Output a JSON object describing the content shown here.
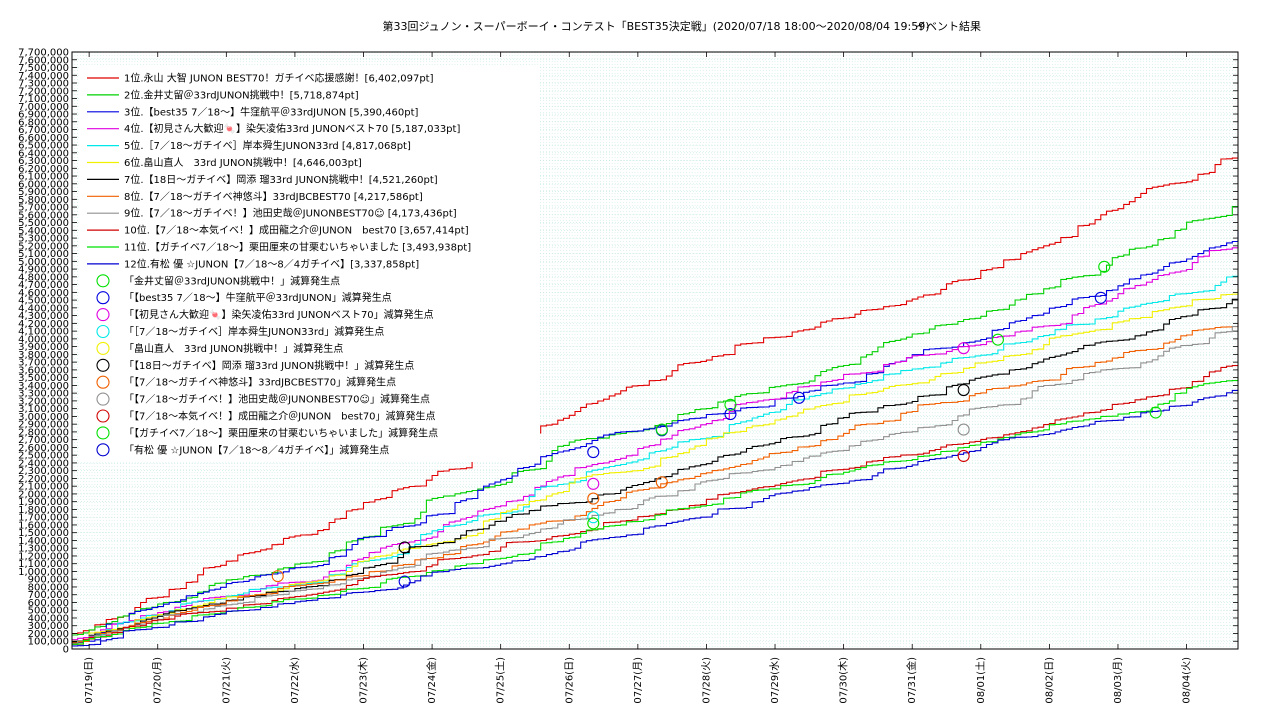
{
  "chart_data": {
    "type": "line",
    "title": "第33回ジュノン・スーパーボーイ・コンテスト「BEST35決定戦」(2020/07/18 18:00〜2020/08/04 19:59)",
    "subtitle": "イベント結果",
    "xlabel": "",
    "ylabel": "",
    "ylim": [
      0,
      7700000
    ],
    "xlim": [
      0,
      17
    ],
    "y_ticks": [
      "0",
      "100,000",
      "200,000",
      "300,000",
      "400,000",
      "500,000",
      "600,000",
      "700,000",
      "800,000",
      "900,000",
      "1,000,000",
      "1,100,000",
      "1,200,000",
      "1,300,000",
      "1,400,000",
      "1,500,000",
      "1,600,000",
      "1,700,000",
      "1,800,000",
      "1,900,000",
      "2,000,000",
      "2,100,000",
      "2,200,000",
      "2,300,000",
      "2,400,000",
      "2,500,000",
      "2,600,000",
      "2,700,000",
      "2,800,000",
      "2,900,000",
      "3,000,000",
      "3,100,000",
      "3,200,000",
      "3,300,000",
      "3,400,000",
      "3,500,000",
      "3,600,000",
      "3,700,000",
      "3,800,000",
      "3,900,000",
      "4,000,000",
      "4,100,000",
      "4,200,000",
      "4,300,000",
      "4,400,000",
      "4,500,000",
      "4,600,000",
      "4,700,000",
      "4,800,000",
      "4,900,000",
      "5,000,000",
      "5,100,000",
      "5,200,000",
      "5,300,000",
      "5,400,000",
      "5,500,000",
      "5,600,000",
      "5,700,000",
      "5,800,000",
      "5,900,000",
      "6,000,000",
      "6,100,000",
      "6,200,000",
      "6,300,000",
      "6,400,000",
      "6,500,000",
      "6,600,000",
      "6,700,000",
      "6,800,000",
      "6,900,000",
      "7,000,000",
      "7,100,000",
      "7,200,000",
      "7,300,000",
      "7,400,000",
      "7,500,000",
      "7,600,000",
      "7,700,000"
    ],
    "x_ticks": [
      "07/19(日)",
      "07/20(月)",
      "07/21(火)",
      "07/22(水)",
      "07/23(木)",
      "07/24(金)",
      "07/25(土)",
      "07/26(日)",
      "07/27(月)",
      "07/28(火)",
      "07/29(水)",
      "07/30(木)",
      "07/31(金)",
      "08/01(土)",
      "08/02(日)",
      "08/03(月)",
      "08/04(火)"
    ],
    "x_tick_positions": [
      0.25,
      1.25,
      2.25,
      3.25,
      4.25,
      5.25,
      6.25,
      7.25,
      8.25,
      9.25,
      10.25,
      11.25,
      12.25,
      13.25,
      14.25,
      15.25,
      16.25
    ],
    "grid": true,
    "legend_position": "top-left",
    "series": [
      {
        "name": "1位.永山 大智 JUNON BEST70！ガチイベ応援感謝！[6,402,097pt]",
        "color": "#e00000",
        "x": [
          0,
          0.5,
          1,
          2,
          3,
          4,
          5,
          6,
          7,
          8,
          9,
          10,
          11,
          12,
          13,
          14,
          15,
          16,
          17
        ],
        "y": [
          200000,
          380000,
          600000,
          1050000,
          1350000,
          1780000,
          2100000,
          2480000,
          2900000,
          3330000,
          3690000,
          3950000,
          4230000,
          4430000,
          4760000,
          5150000,
          5600000,
          6000000,
          6402097
        ]
      },
      {
        "name": "2位.金井丈留＠33rdJUNON挑戦中！[5,718,874pt]",
        "color": "#00d000",
        "x": [
          0,
          0.5,
          1,
          2,
          3,
          4,
          5,
          6,
          7,
          8,
          9,
          10,
          11,
          12,
          13,
          14,
          15,
          16,
          17
        ],
        "y": [
          180000,
          330000,
          520000,
          820000,
          1030000,
          1380000,
          1680000,
          2080000,
          2560000,
          2780000,
          3050000,
          3300000,
          3600000,
          3980000,
          4250000,
          4580000,
          4870000,
          5300000,
          5718874
        ]
      },
      {
        "name": "3位.【best35 7／18〜】牛窪航平＠33rdJUNON [5,390,460pt]",
        "color": "#0000e0",
        "x": [
          0,
          0.5,
          1,
          2,
          3,
          4,
          5,
          6,
          7,
          8,
          9,
          10,
          11,
          12,
          13,
          14,
          15,
          16,
          17
        ],
        "y": [
          70000,
          320000,
          500000,
          760000,
          980000,
          1280000,
          1600000,
          2100000,
          2520000,
          2800000,
          2970000,
          3120000,
          3400000,
          3700000,
          3950000,
          4300000,
          4560000,
          4980000,
          5390460
        ]
      },
      {
        "name": "4位.【初見さん大歓迎🍬】染矢凌佑33rd JUNONベスト70 [5,187,033pt]",
        "color": "#e000e0",
        "x": [
          0,
          0.5,
          1,
          2,
          3,
          4,
          5,
          6,
          7,
          8,
          9,
          10,
          11,
          12,
          13,
          14,
          15,
          16,
          17
        ],
        "y": [
          120000,
          260000,
          430000,
          660000,
          850000,
          1080000,
          1400000,
          1800000,
          2180000,
          2460000,
          2840000,
          3200000,
          3450000,
          3700000,
          3900000,
          4150000,
          4450000,
          4850000,
          5187033
        ]
      },
      {
        "name": "5位.［7／18〜ガチイベ］岸本舜生JUNON33rd [4,817,068pt]",
        "color": "#00e8e8",
        "x": [
          0,
          0.5,
          1,
          2,
          3,
          4,
          5,
          6,
          7,
          8,
          9,
          10,
          11,
          12,
          13,
          14,
          15,
          16,
          17
        ],
        "y": [
          100000,
          250000,
          400000,
          630000,
          800000,
          1050000,
          1350000,
          1730000,
          2100000,
          2380000,
          2700000,
          3000000,
          3300000,
          3550000,
          3760000,
          4000000,
          4260000,
          4560000,
          4817068
        ]
      },
      {
        "name": "6位.畠山直人　33rd JUNON挑戦中！[4,646,003pt]",
        "color": "#f0f000",
        "x": [
          0,
          0.5,
          1,
          2,
          3,
          4,
          5,
          6,
          7,
          8,
          9,
          10,
          11,
          12,
          13,
          14,
          15,
          16,
          17
        ],
        "y": [
          100000,
          240000,
          380000,
          600000,
          760000,
          1000000,
          1300000,
          1650000,
          2000000,
          2280000,
          2580000,
          2880000,
          3150000,
          3400000,
          3620000,
          3860000,
          4120000,
          4400000,
          4646003
        ]
      },
      {
        "name": "7位.【18日〜ガチイベ】岡添 瑠33rd JUNON挑戦中！[4,521,260pt]",
        "color": "#000000",
        "x": [
          0,
          0.5,
          1,
          2,
          3,
          4,
          5,
          6,
          7,
          8,
          9,
          10,
          11,
          12,
          13,
          14,
          15,
          16,
          17
        ],
        "y": [
          90000,
          230000,
          360000,
          580000,
          740000,
          950000,
          1320000,
          1550000,
          1850000,
          2050000,
          2350000,
          2620000,
          2900000,
          3150000,
          3420000,
          3680000,
          3960000,
          4250000,
          4521260
        ]
      },
      {
        "name": "8位.【7／18〜ガチイベ神悠斗】33rdJBCBEST70 [4,217,586pt]",
        "color": "#f06000",
        "x": [
          0,
          0.5,
          1,
          2,
          3,
          4,
          5,
          6,
          7,
          8,
          9,
          10,
          11,
          12,
          13,
          14,
          15,
          16,
          17
        ],
        "y": [
          80000,
          210000,
          340000,
          560000,
          780000,
          930000,
          1150000,
          1380000,
          1650000,
          1950000,
          2200000,
          2450000,
          2700000,
          2950000,
          3200000,
          3450000,
          3700000,
          3960000,
          4217586
        ]
      },
      {
        "name": "9位.【7／18〜ガチイベ！】池田史哉＠JUNONBEST70☺ [4,173,436pt]",
        "color": "#909090",
        "x": [
          0,
          0.5,
          1,
          2,
          3,
          4,
          5,
          6,
          7,
          8,
          9,
          10,
          11,
          12,
          13,
          14,
          15,
          16,
          17
        ],
        "y": [
          70000,
          190000,
          320000,
          520000,
          700000,
          890000,
          1080000,
          1320000,
          1560000,
          1800000,
          2050000,
          2300000,
          2540000,
          2780000,
          3020000,
          3330000,
          3600000,
          3880000,
          4173436
        ]
      },
      {
        "name": "10位.【7／18〜本気イベ！】成田龍之介＠JUNON　best70 [3,657,414pt]",
        "color": "#d00000",
        "x": [
          0,
          0.5,
          1,
          2,
          3,
          4,
          5,
          6,
          7,
          8,
          9,
          10,
          11,
          12,
          13,
          14,
          15,
          16,
          17
        ],
        "y": [
          60000,
          170000,
          300000,
          480000,
          650000,
          820000,
          1000000,
          1220000,
          1450000,
          1650000,
          1850000,
          2080000,
          2300000,
          2480000,
          2650000,
          2850000,
          3080000,
          3350000,
          3657414
        ]
      },
      {
        "name": "11位.【ガチイベ7／18〜】栗田厘来の甘栗むいちゃいました [3,493,938pt]",
        "color": "#00e000",
        "x": [
          0,
          0.5,
          1,
          2,
          3,
          4,
          5,
          6,
          7,
          8,
          9,
          10,
          11,
          12,
          13,
          14,
          15,
          16,
          17
        ],
        "y": [
          60000,
          160000,
          280000,
          450000,
          610000,
          770000,
          940000,
          1150000,
          1380000,
          1600000,
          1820000,
          2050000,
          2250000,
          2420000,
          2600000,
          2800000,
          3000000,
          3200000,
          3493938
        ]
      },
      {
        "name": "12位.有松 優 ☆JUNON【7／18〜8／4ガチイベ】[3,337,858pt]",
        "color": "#0000d0",
        "x": [
          0,
          0.5,
          1,
          2,
          3,
          4,
          5,
          6,
          7,
          8,
          9,
          10,
          11,
          12,
          13,
          14,
          15,
          16,
          17
        ],
        "y": [
          40000,
          120000,
          250000,
          420000,
          580000,
          720000,
          880000,
          1050000,
          1230000,
          1450000,
          1680000,
          1900000,
          2120000,
          2330000,
          2530000,
          2740000,
          2940000,
          3130000,
          3337858
        ]
      }
    ],
    "reduction_points": [
      {
        "name": "「金井丈留＠33rdJUNON挑戦中！」減算発生点",
        "color": "#00e000",
        "x": [
          13.5,
          15.05
        ],
        "y": [
          3990000,
          4930000
        ]
      },
      {
        "name": "「【best35 7／18〜】牛窪航平＠33rdJUNON」減算発生点",
        "color": "#0000e0",
        "x": [
          4.85,
          7.6,
          8.6,
          9.6,
          10.6,
          15.0
        ],
        "y": [
          870000,
          2540000,
          2820000,
          3030000,
          3240000,
          4530000
        ]
      },
      {
        "name": "「【初見さん大歓迎🍬】染矢凌佑33rd JUNONベスト70」減算発生点",
        "color": "#e000e0",
        "x": [
          7.6,
          13.0
        ],
        "y": [
          2130000,
          3880000
        ]
      },
      {
        "name": "「［7／18〜ガチイベ］岸本舜生JUNON33rd」減算発生点",
        "color": "#00e8e8",
        "x": [
          7.6
        ],
        "y": [
          1700000
        ]
      },
      {
        "name": "「畠山直人　33rd JUNON挑戦中！」減算発生点",
        "color": "#f0f000",
        "x": [
          7.6
        ],
        "y": [
          1620000
        ]
      },
      {
        "name": "「【18日〜ガチイベ】岡添 瑠33rd JUNON挑戦中！」減算発生点",
        "color": "#000000",
        "x": [
          4.85,
          13.0
        ],
        "y": [
          1310000,
          3340000
        ]
      },
      {
        "name": "「【7／18〜ガチイベ神悠斗】33rdJBCBEST70」減算発生点",
        "color": "#f06000",
        "x": [
          3.0,
          7.6,
          8.6
        ],
        "y": [
          940000,
          1940000,
          2150000
        ]
      },
      {
        "name": "「【7／18〜ガチイベ！】池田史哉＠JUNONBEST70☺」減算発生点",
        "color": "#909090",
        "x": [
          13.0
        ],
        "y": [
          2830000
        ]
      },
      {
        "name": "「【7／18〜本気イベ！】成田龍之介＠JUNON　best70」減算発生点",
        "color": "#d00000",
        "x": [
          13.0
        ],
        "y": [
          2490000
        ]
      },
      {
        "name": "「【ガチイベ7／18〜】栗田厘来の甘栗むいちゃいました」減算発生点",
        "color": "#00e000",
        "x": [
          7.6,
          8.6,
          9.6,
          15.8
        ],
        "y": [
          1620000,
          2830000,
          3150000,
          3050000
        ]
      },
      {
        "name": "「有松 優 ☆JUNON【7／18〜8／4ガチイベ】」減算発生点",
        "color": "#0000d0",
        "x": [],
        "y": []
      }
    ]
  }
}
